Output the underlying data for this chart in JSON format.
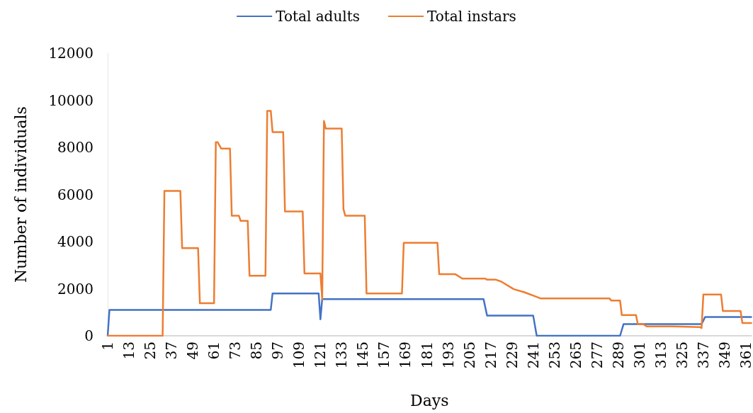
{
  "chart_data": {
    "type": "line",
    "xlabel": "Days",
    "ylabel": "Number of individuals",
    "xlim": [
      1,
      364
    ],
    "xticks": [
      1,
      13,
      25,
      37,
      49,
      61,
      73,
      85,
      97,
      109,
      121,
      133,
      145,
      157,
      169,
      181,
      193,
      205,
      217,
      229,
      241,
      253,
      265,
      277,
      289,
      301,
      313,
      325,
      337,
      349,
      361
    ],
    "ylim": [
      0,
      12000
    ],
    "yticks": [
      0,
      2000,
      4000,
      6000,
      8000,
      10000,
      12000
    ],
    "grid": false,
    "legend": "top",
    "marker": "none",
    "line_style": "solid",
    "series": [
      {
        "name": "Total adults",
        "color": "#4472c4",
        "x": [
          1,
          2,
          93,
          94,
          120,
          121,
          122,
          213,
          215,
          241,
          243,
          290,
          292,
          336,
          338,
          364
        ],
        "values": [
          0,
          1100,
          1100,
          1800,
          1800,
          700,
          1560,
          1560,
          860,
          860,
          0,
          0,
          500,
          500,
          800,
          800
        ]
      },
      {
        "name": "Total instars",
        "color": "#ed7d31",
        "x": [
          1,
          32,
          33,
          42,
          43,
          52,
          53,
          61,
          62,
          63,
          65,
          70,
          71,
          75,
          76,
          80,
          81,
          90,
          91,
          93,
          94,
          100,
          101,
          111,
          112,
          121,
          122,
          123,
          124,
          133,
          134,
          135,
          146,
          147,
          167,
          168,
          187,
          188,
          197,
          201,
          214,
          215,
          220,
          223,
          230,
          236,
          243,
          245,
          284,
          285,
          290,
          291,
          299,
          300,
          303,
          305,
          320,
          335,
          336,
          337,
          347,
          348,
          358,
          359,
          364
        ],
        "values": [
          0,
          0,
          6150,
          6150,
          3720,
          3720,
          1380,
          1380,
          8220,
          8220,
          7950,
          7950,
          5100,
          5100,
          4880,
          4880,
          2550,
          2550,
          9550,
          9550,
          8650,
          8650,
          5280,
          5280,
          2650,
          2650,
          1550,
          9120,
          8800,
          8800,
          5380,
          5100,
          5100,
          1800,
          1800,
          3950,
          3950,
          2620,
          2620,
          2430,
          2430,
          2380,
          2380,
          2300,
          1980,
          1850,
          1650,
          1590,
          1590,
          1500,
          1500,
          880,
          880,
          500,
          500,
          400,
          400,
          370,
          330,
          1750,
          1750,
          1050,
          1050,
          540,
          540
        ]
      }
    ]
  }
}
